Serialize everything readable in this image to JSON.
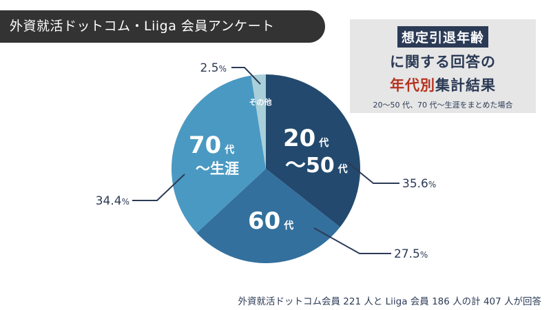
{
  "header": {
    "title": "外資就活ドットコム・Liiga 会員アンケート"
  },
  "infobox": {
    "line1": "想定引退年齢",
    "line2": "に関する回答の",
    "line3_accent": "年代別",
    "line3_rest": "集計結果",
    "note": "20～50 代、70 代～生涯をまとめた場合"
  },
  "footer": {
    "note": "外資就活ドットコム会員 221 人と Liiga 会員 186 人の計 407 人が回答"
  },
  "colors": {
    "slice_20_50": "#234a6e",
    "slice_60": "#33709d",
    "slice_70": "#4a99c2",
    "slice_other": "#a9cfda",
    "text": "#2b3a55",
    "accent": "#b5321f"
  },
  "chart_data": {
    "type": "pie",
    "title": "",
    "slices": [
      {
        "label_main": "20",
        "label_unit": "代",
        "label_main2": "～50",
        "label_unit2": "代",
        "value": 35.6,
        "display": "35.6%"
      },
      {
        "label_main": "60",
        "label_unit": "代",
        "value": 27.5,
        "display": "27.5%"
      },
      {
        "label_main": "70",
        "label_unit": "代",
        "label_main2": "～生涯",
        "label_unit2": "",
        "value": 34.4,
        "display": "34.4%"
      },
      {
        "label_main": "その他",
        "label_unit": "",
        "value": 2.5,
        "display": "2.5%"
      }
    ]
  }
}
